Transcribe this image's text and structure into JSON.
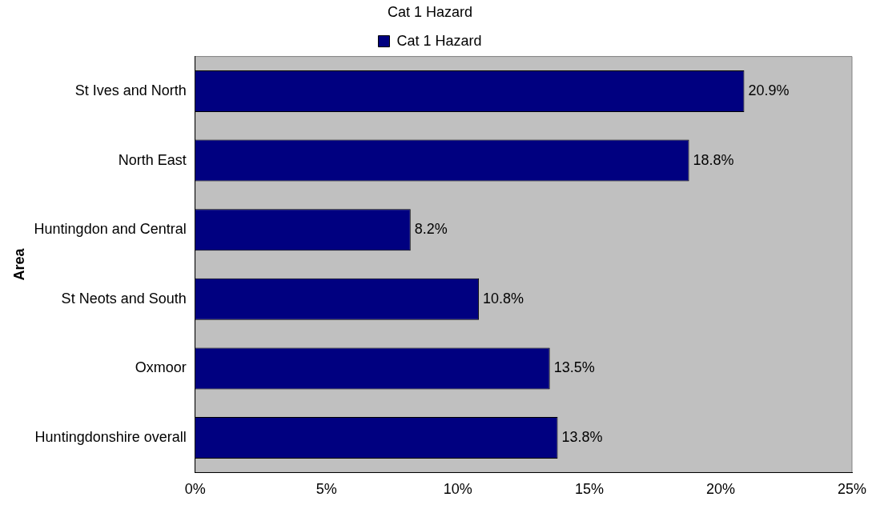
{
  "chart_data": {
    "type": "bar",
    "orientation": "horizontal",
    "title": "Cat 1 Hazard",
    "ylabel": "Area",
    "categories": [
      "St Ives and North",
      "North East",
      "Huntingdon and Central",
      "St Neots and South",
      "Oxmoor",
      "Huntingdonshire overall"
    ],
    "series": [
      {
        "name": "Cat 1 Hazard",
        "color": "#000080",
        "values": [
          20.9,
          18.8,
          8.2,
          10.8,
          13.5,
          13.8
        ],
        "value_labels": [
          "20.9%",
          "18.8%",
          "8.2%",
          "10.8%",
          "13.5%",
          "13.8%"
        ]
      }
    ],
    "xlim": [
      0,
      25
    ],
    "xticks": [
      {
        "value": 0,
        "label": "0%"
      },
      {
        "value": 5,
        "label": "5%"
      },
      {
        "value": 10,
        "label": "10%"
      },
      {
        "value": 15,
        "label": "15%"
      },
      {
        "value": 20,
        "label": "20%"
      },
      {
        "value": 25,
        "label": "25%"
      }
    ],
    "grid": false,
    "legend": "top"
  }
}
